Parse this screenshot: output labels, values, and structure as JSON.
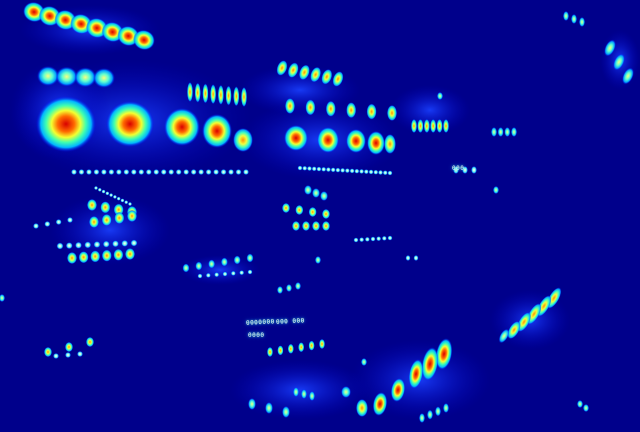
{
  "image": {
    "description_type": "false-color heatmap of a photographed control/instrument panel",
    "colormap": [
      "#00008b",
      "#0000ff",
      "#00c0ff",
      "#40ffb0",
      "#f0ff30",
      "#ff8000",
      "#e00000"
    ],
    "background_color": "#00008b"
  },
  "visible_text": {
    "label_a": "0000000",
    "label_b": "000 000",
    "label_c": "0000",
    "label_d": "000"
  }
}
